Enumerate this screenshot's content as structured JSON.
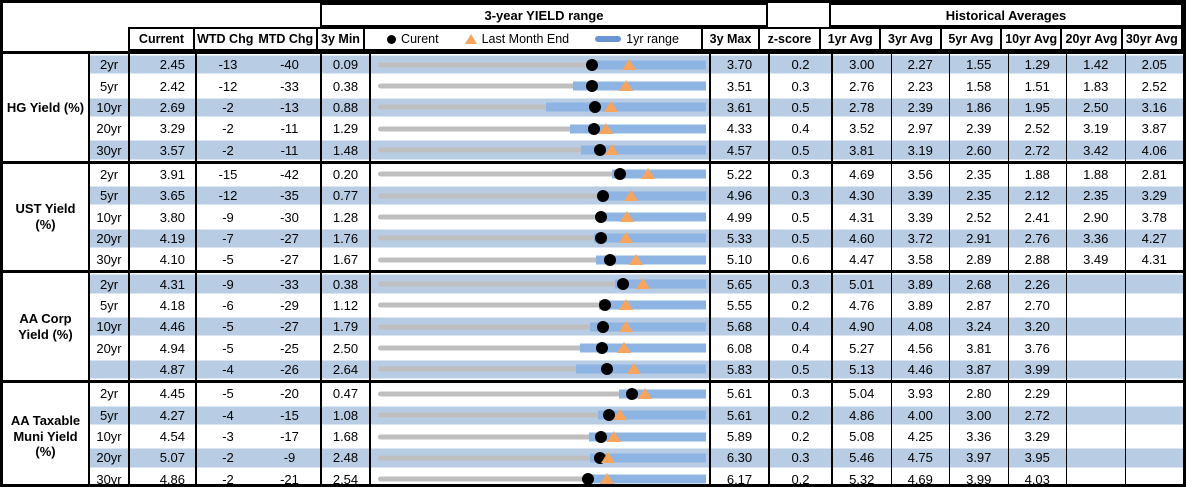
{
  "header": {
    "range_title": "3-year YIELD range",
    "hist_title": "Historical Averages",
    "col_current": "Current",
    "col_wtd": "WTD Chg",
    "col_mtd": "MTD Chg",
    "col_min": "3y Min",
    "col_max": "3y Max",
    "col_z": "z-score",
    "avg_cols": [
      "1yr Avg",
      "3yr Avg",
      "5yr Avg",
      "10yr Avg",
      "20yr Avg",
      "30yr Avg"
    ],
    "legend": {
      "current": "Curent",
      "last_month": "Last Month End",
      "range": "1yr range"
    }
  },
  "colors": {
    "row_shade": "#B8CCE4",
    "bar_1yr_range": "#8DB4E2",
    "track_gray": "#BFBFBF",
    "marker_triangle": "#F9A45C",
    "marker_dot": "#000000",
    "legend_swatch": "#6795D1",
    "border": "#000000"
  },
  "chart_data": {
    "type": "table",
    "embedded_chart": {
      "type": "bullet-range",
      "title": "3-year YIELD range",
      "legend": [
        "Curent (dot)",
        "Last Month End (triangle)",
        "1yr range (blue bar)"
      ],
      "x_scale": "each row scaled linearly from its 3y Min to its 3y Max"
    },
    "groups": [
      {
        "label": "HG Yield (%)",
        "rows": [
          {
            "tenor": "2yr",
            "current": "2.45",
            "wtd": "-13",
            "mtd": "-40",
            "min3y": "0.09",
            "max3y": "3.70",
            "z": "0.2",
            "last_month_end": 2.85,
            "range1y": [
              2.5,
              3.7
            ],
            "avgs": [
              "3.00",
              "2.27",
              "1.55",
              "1.29",
              "1.42",
              "2.05"
            ]
          },
          {
            "tenor": "5yr",
            "current": "2.42",
            "wtd": "-12",
            "mtd": "-33",
            "min3y": "0.38",
            "max3y": "3.51",
            "z": "0.3",
            "last_month_end": 2.75,
            "range1y": [
              2.24,
              3.51
            ],
            "avgs": [
              "2.76",
              "2.23",
              "1.58",
              "1.51",
              "1.83",
              "2.52"
            ]
          },
          {
            "tenor": "10yr",
            "current": "2.69",
            "wtd": "-2",
            "mtd": "-13",
            "min3y": "0.88",
            "max3y": "3.61",
            "z": "0.5",
            "last_month_end": 2.82,
            "range1y": [
              2.28,
              3.61
            ],
            "avgs": [
              "2.78",
              "2.39",
              "1.86",
              "1.95",
              "2.50",
              "3.16"
            ]
          },
          {
            "tenor": "20yr",
            "current": "3.29",
            "wtd": "-2",
            "mtd": "-11",
            "min3y": "1.29",
            "max3y": "4.33",
            "z": "0.4",
            "last_month_end": 3.4,
            "range1y": [
              3.07,
              4.33
            ],
            "avgs": [
              "3.52",
              "2.97",
              "2.39",
              "2.52",
              "3.19",
              "3.87"
            ]
          },
          {
            "tenor": "30yr",
            "current": "3.57",
            "wtd": "-2",
            "mtd": "-11",
            "min3y": "1.48",
            "max3y": "4.57",
            "z": "0.5",
            "last_month_end": 3.68,
            "range1y": [
              3.39,
              4.57
            ],
            "avgs": [
              "3.81",
              "3.19",
              "2.60",
              "2.72",
              "3.42",
              "4.06"
            ]
          }
        ]
      },
      {
        "label": "UST Yield (%)",
        "rows": [
          {
            "tenor": "2yr",
            "current": "3.91",
            "wtd": "-15",
            "mtd": "-42",
            "min3y": "0.20",
            "max3y": "5.22",
            "z": "0.3",
            "last_month_end": 4.33,
            "range1y": [
              3.78,
              5.22
            ],
            "avgs": [
              "4.69",
              "3.56",
              "2.35",
              "1.88",
              "1.88",
              "2.81"
            ]
          },
          {
            "tenor": "5yr",
            "current": "3.65",
            "wtd": "-12",
            "mtd": "-35",
            "min3y": "0.77",
            "max3y": "4.96",
            "z": "0.3",
            "last_month_end": 4.0,
            "range1y": [
              3.61,
              4.96
            ],
            "avgs": [
              "4.30",
              "3.39",
              "2.35",
              "2.12",
              "2.35",
              "3.29"
            ]
          },
          {
            "tenor": "10yr",
            "current": "3.80",
            "wtd": "-9",
            "mtd": "-30",
            "min3y": "1.28",
            "max3y": "4.99",
            "z": "0.5",
            "last_month_end": 4.1,
            "range1y": [
              3.77,
              4.99
            ],
            "avgs": [
              "4.31",
              "3.39",
              "2.52",
              "2.41",
              "2.90",
              "3.78"
            ]
          },
          {
            "tenor": "20yr",
            "current": "4.19",
            "wtd": "-7",
            "mtd": "-27",
            "min3y": "1.76",
            "max3y": "5.33",
            "z": "0.5",
            "last_month_end": 4.46,
            "range1y": [
              4.11,
              5.33
            ],
            "avgs": [
              "4.60",
              "3.72",
              "2.91",
              "2.76",
              "3.36",
              "4.27"
            ]
          },
          {
            "tenor": "30yr",
            "current": "4.10",
            "wtd": "-5",
            "mtd": "-27",
            "min3y": "1.67",
            "max3y": "5.10",
            "z": "0.6",
            "last_month_end": 4.37,
            "range1y": [
              3.95,
              5.1
            ],
            "avgs": [
              "4.47",
              "3.58",
              "2.89",
              "2.88",
              "3.49",
              "4.31"
            ]
          }
        ]
      },
      {
        "label": "AA Corp Yield (%)",
        "rows": [
          {
            "tenor": "2yr",
            "current": "4.31",
            "wtd": "-9",
            "mtd": "-33",
            "min3y": "0.38",
            "max3y": "5.65",
            "z": "0.3",
            "last_month_end": 4.64,
            "range1y": [
              4.19,
              5.65
            ],
            "avgs": [
              "5.01",
              "3.89",
              "2.68",
              "2.26",
              "",
              ""
            ]
          },
          {
            "tenor": "5yr",
            "current": "4.18",
            "wtd": "-6",
            "mtd": "-29",
            "min3y": "1.12",
            "max3y": "5.55",
            "z": "0.2",
            "last_month_end": 4.47,
            "range1y": [
              4.11,
              5.55
            ],
            "avgs": [
              "4.76",
              "3.89",
              "2.87",
              "2.70",
              "",
              ""
            ]
          },
          {
            "tenor": "10yr",
            "current": "4.46",
            "wtd": "-5",
            "mtd": "-27",
            "min3y": "1.79",
            "max3y": "5.68",
            "z": "0.4",
            "last_month_end": 4.73,
            "range1y": [
              4.31,
              5.68
            ],
            "avgs": [
              "4.90",
              "4.08",
              "3.24",
              "3.20",
              "",
              ""
            ]
          },
          {
            "tenor": "20yr",
            "current": "4.94",
            "wtd": "-5",
            "mtd": "-25",
            "min3y": "2.50",
            "max3y": "6.08",
            "z": "0.4",
            "last_month_end": 5.19,
            "range1y": [
              4.71,
              6.08
            ],
            "avgs": [
              "5.27",
              "4.56",
              "3.81",
              "3.76",
              "",
              ""
            ]
          },
          {
            "tenor": "",
            "current": "4.87",
            "wtd": "-4",
            "mtd": "-26",
            "min3y": "2.64",
            "max3y": "5.83",
            "z": "0.5",
            "last_month_end": 5.13,
            "range1y": [
              4.57,
              5.83
            ],
            "avgs": [
              "5.13",
              "4.46",
              "3.87",
              "3.99",
              "",
              ""
            ]
          }
        ]
      },
      {
        "label": "AA Taxable Muni Yield (%)",
        "rows": [
          {
            "tenor": "2yr",
            "current": "4.45",
            "wtd": "-5",
            "mtd": "-20",
            "min3y": "0.47",
            "max3y": "5.61",
            "z": "0.3",
            "last_month_end": 4.65,
            "range1y": [
              4.24,
              5.61
            ],
            "avgs": [
              "5.04",
              "3.93",
              "2.80",
              "2.29",
              "",
              ""
            ]
          },
          {
            "tenor": "5yr",
            "current": "4.27",
            "wtd": "-4",
            "mtd": "-15",
            "min3y": "1.08",
            "max3y": "5.61",
            "z": "0.2",
            "last_month_end": 4.42,
            "range1y": [
              4.12,
              5.61
            ],
            "avgs": [
              "4.86",
              "4.00",
              "3.00",
              "2.72",
              "",
              ""
            ]
          },
          {
            "tenor": "10yr",
            "current": "4.54",
            "wtd": "-3",
            "mtd": "-17",
            "min3y": "1.68",
            "max3y": "5.89",
            "z": "0.2",
            "last_month_end": 4.71,
            "range1y": [
              4.39,
              5.89
            ],
            "avgs": [
              "5.08",
              "4.25",
              "3.36",
              "3.29",
              "",
              ""
            ]
          },
          {
            "tenor": "20yr",
            "current": "5.07",
            "wtd": "-2",
            "mtd": "-9",
            "min3y": "2.48",
            "max3y": "6.30",
            "z": "0.3",
            "last_month_end": 5.16,
            "range1y": [
              4.95,
              6.3
            ],
            "avgs": [
              "5.46",
              "4.75",
              "3.97",
              "3.95",
              "",
              ""
            ]
          },
          {
            "tenor": "30yr",
            "current": "4.86",
            "wtd": "-2",
            "mtd": "-21",
            "min3y": "2.54",
            "max3y": "6.17",
            "z": "0.2",
            "last_month_end": 5.07,
            "range1y": [
              4.89,
              6.17
            ],
            "avgs": [
              "5.32",
              "4.69",
              "3.99",
              "4.03",
              "",
              ""
            ]
          }
        ]
      }
    ]
  }
}
